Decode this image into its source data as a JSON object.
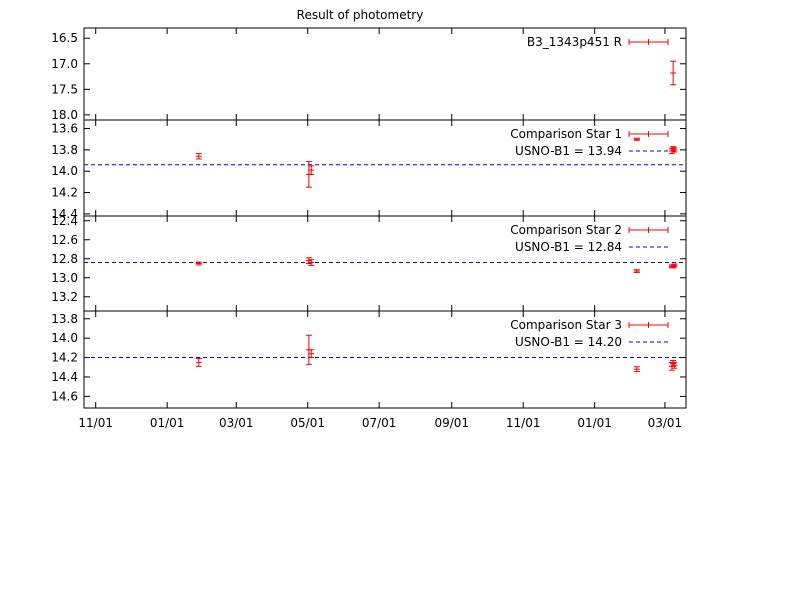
{
  "title": "Result of photometry",
  "x_ticks": [
    "11/01",
    "01/01",
    "03/01",
    "05/01",
    "07/01",
    "09/01",
    "11/01",
    "01/01",
    "03/01"
  ],
  "x_tick_dates": [
    "2010-11-01",
    "2011-01-01",
    "2011-03-01",
    "2011-05-01",
    "2011-07-01",
    "2011-09-01",
    "2011-11-01",
    "2012-01-01",
    "2012-03-01"
  ],
  "x_range": [
    "2010-10-22",
    "2012-03-19"
  ],
  "colors": {
    "points": "#ff0000",
    "reference_line": "#0000ff",
    "frame": "#000000"
  },
  "chart_data": [
    {
      "type": "scatter",
      "y_inverted": true,
      "ylim": [
        16.3,
        18.1
      ],
      "y_ticks": [
        "16.5",
        "17.0",
        "17.5",
        "18.0"
      ],
      "y_tick_values": [
        16.5,
        17.0,
        17.5,
        18.0
      ],
      "series": [
        {
          "name": "B3_1343p451 R",
          "points": [
            {
              "x": "2012-03-08",
              "y": 17.18,
              "err": 0.23
            }
          ]
        }
      ]
    },
    {
      "type": "scatter",
      "y_inverted": true,
      "ylim": [
        13.52,
        14.42
      ],
      "y_ticks": [
        "13.6",
        "13.8",
        "14.0",
        "14.2",
        "14.4"
      ],
      "y_tick_values": [
        13.6,
        13.8,
        14.0,
        14.2,
        14.4
      ],
      "series": [
        {
          "name": "Comparison Star 1",
          "points": [
            {
              "x": "2011-01-28",
              "y": 13.86,
              "err": 0.025
            },
            {
              "x": "2011-05-02",
              "y": 14.03,
              "err": 0.12
            },
            {
              "x": "2011-05-04",
              "y": 13.99,
              "err": 0.04
            },
            {
              "x": "2012-02-06",
              "y": 13.7,
              "err": 0.01
            },
            {
              "x": "2012-03-07",
              "y": 13.81,
              "err": 0.025
            },
            {
              "x": "2012-03-08",
              "y": 13.79,
              "err": 0.02
            },
            {
              "x": "2012-03-09",
              "y": 13.8,
              "err": 0.02
            }
          ]
        }
      ],
      "reference": {
        "label": "USNO-B1 = 13.94",
        "value": 13.94
      }
    },
    {
      "type": "scatter",
      "y_inverted": true,
      "ylim": [
        12.35,
        13.35
      ],
      "y_ticks": [
        "12.4",
        "12.6",
        "12.8",
        "13.0",
        "13.2"
      ],
      "y_tick_values": [
        12.4,
        12.6,
        12.8,
        13.0,
        13.2
      ],
      "series": [
        {
          "name": "Comparison Star 2",
          "points": [
            {
              "x": "2011-01-28",
              "y": 12.85,
              "err": 0.015
            },
            {
              "x": "2011-05-02",
              "y": 12.82,
              "err": 0.03
            },
            {
              "x": "2011-05-04",
              "y": 12.84,
              "err": 0.03
            },
            {
              "x": "2012-02-06",
              "y": 12.93,
              "err": 0.015
            },
            {
              "x": "2012-03-07",
              "y": 12.88,
              "err": 0.015
            },
            {
              "x": "2012-03-08",
              "y": 12.88,
              "err": 0.015
            },
            {
              "x": "2012-03-09",
              "y": 12.87,
              "err": 0.015
            }
          ]
        }
      ],
      "reference": {
        "label": "USNO-B1 = 12.84",
        "value": 12.84
      }
    },
    {
      "type": "scatter",
      "y_inverted": true,
      "ylim": [
        13.72,
        14.72
      ],
      "y_ticks": [
        "13.8",
        "14.0",
        "14.2",
        "14.4",
        "14.6"
      ],
      "y_tick_values": [
        13.8,
        14.0,
        14.2,
        14.4,
        14.6
      ],
      "series": [
        {
          "name": "Comparison Star 3",
          "points": [
            {
              "x": "2011-01-28",
              "y": 14.25,
              "err": 0.04
            },
            {
              "x": "2011-05-02",
              "y": 14.12,
              "err": 0.15
            },
            {
              "x": "2011-05-04",
              "y": 14.16,
              "err": 0.04
            },
            {
              "x": "2012-02-06",
              "y": 14.32,
              "err": 0.025
            },
            {
              "x": "2012-03-07",
              "y": 14.29,
              "err": 0.04
            },
            {
              "x": "2012-03-08",
              "y": 14.26,
              "err": 0.03
            },
            {
              "x": "2012-03-09",
              "y": 14.28,
              "err": 0.03
            }
          ]
        }
      ],
      "reference": {
        "label": "USNO-B1 = 14.20",
        "value": 14.2
      }
    }
  ]
}
